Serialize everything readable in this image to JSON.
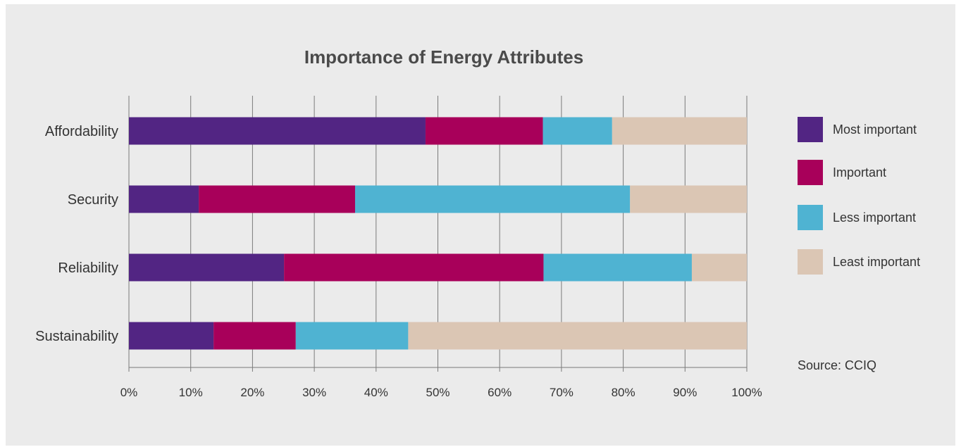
{
  "chart_data": {
    "type": "bar",
    "orientation": "horizontal",
    "stacked": true,
    "title": "Importance of Energy Attributes",
    "categories": [
      "Affordability",
      "Security",
      "Reliability",
      "Sustainability"
    ],
    "series": [
      {
        "name": "Most important",
        "color": "#522583",
        "values": [
          48,
          11.3,
          25.1,
          13.7
        ]
      },
      {
        "name": "Important",
        "color": "#a8005a",
        "values": [
          19,
          25.3,
          42,
          13.3
        ]
      },
      {
        "name": "Less important",
        "color": "#4fb3d2",
        "values": [
          11.2,
          44.5,
          24,
          18.2
        ]
      },
      {
        "name": "Least important",
        "color": "#dbc6b4",
        "values": [
          21.8,
          18.9,
          8.9,
          54.8
        ]
      }
    ],
    "xlim": [
      0,
      100
    ],
    "x_ticks": [
      "0%",
      "10%",
      "20%",
      "30%",
      "40%",
      "50%",
      "60%",
      "70%",
      "80%",
      "90%",
      "100%"
    ],
    "grid": true,
    "legend_position": "right"
  },
  "source": "Source: CCIQ"
}
